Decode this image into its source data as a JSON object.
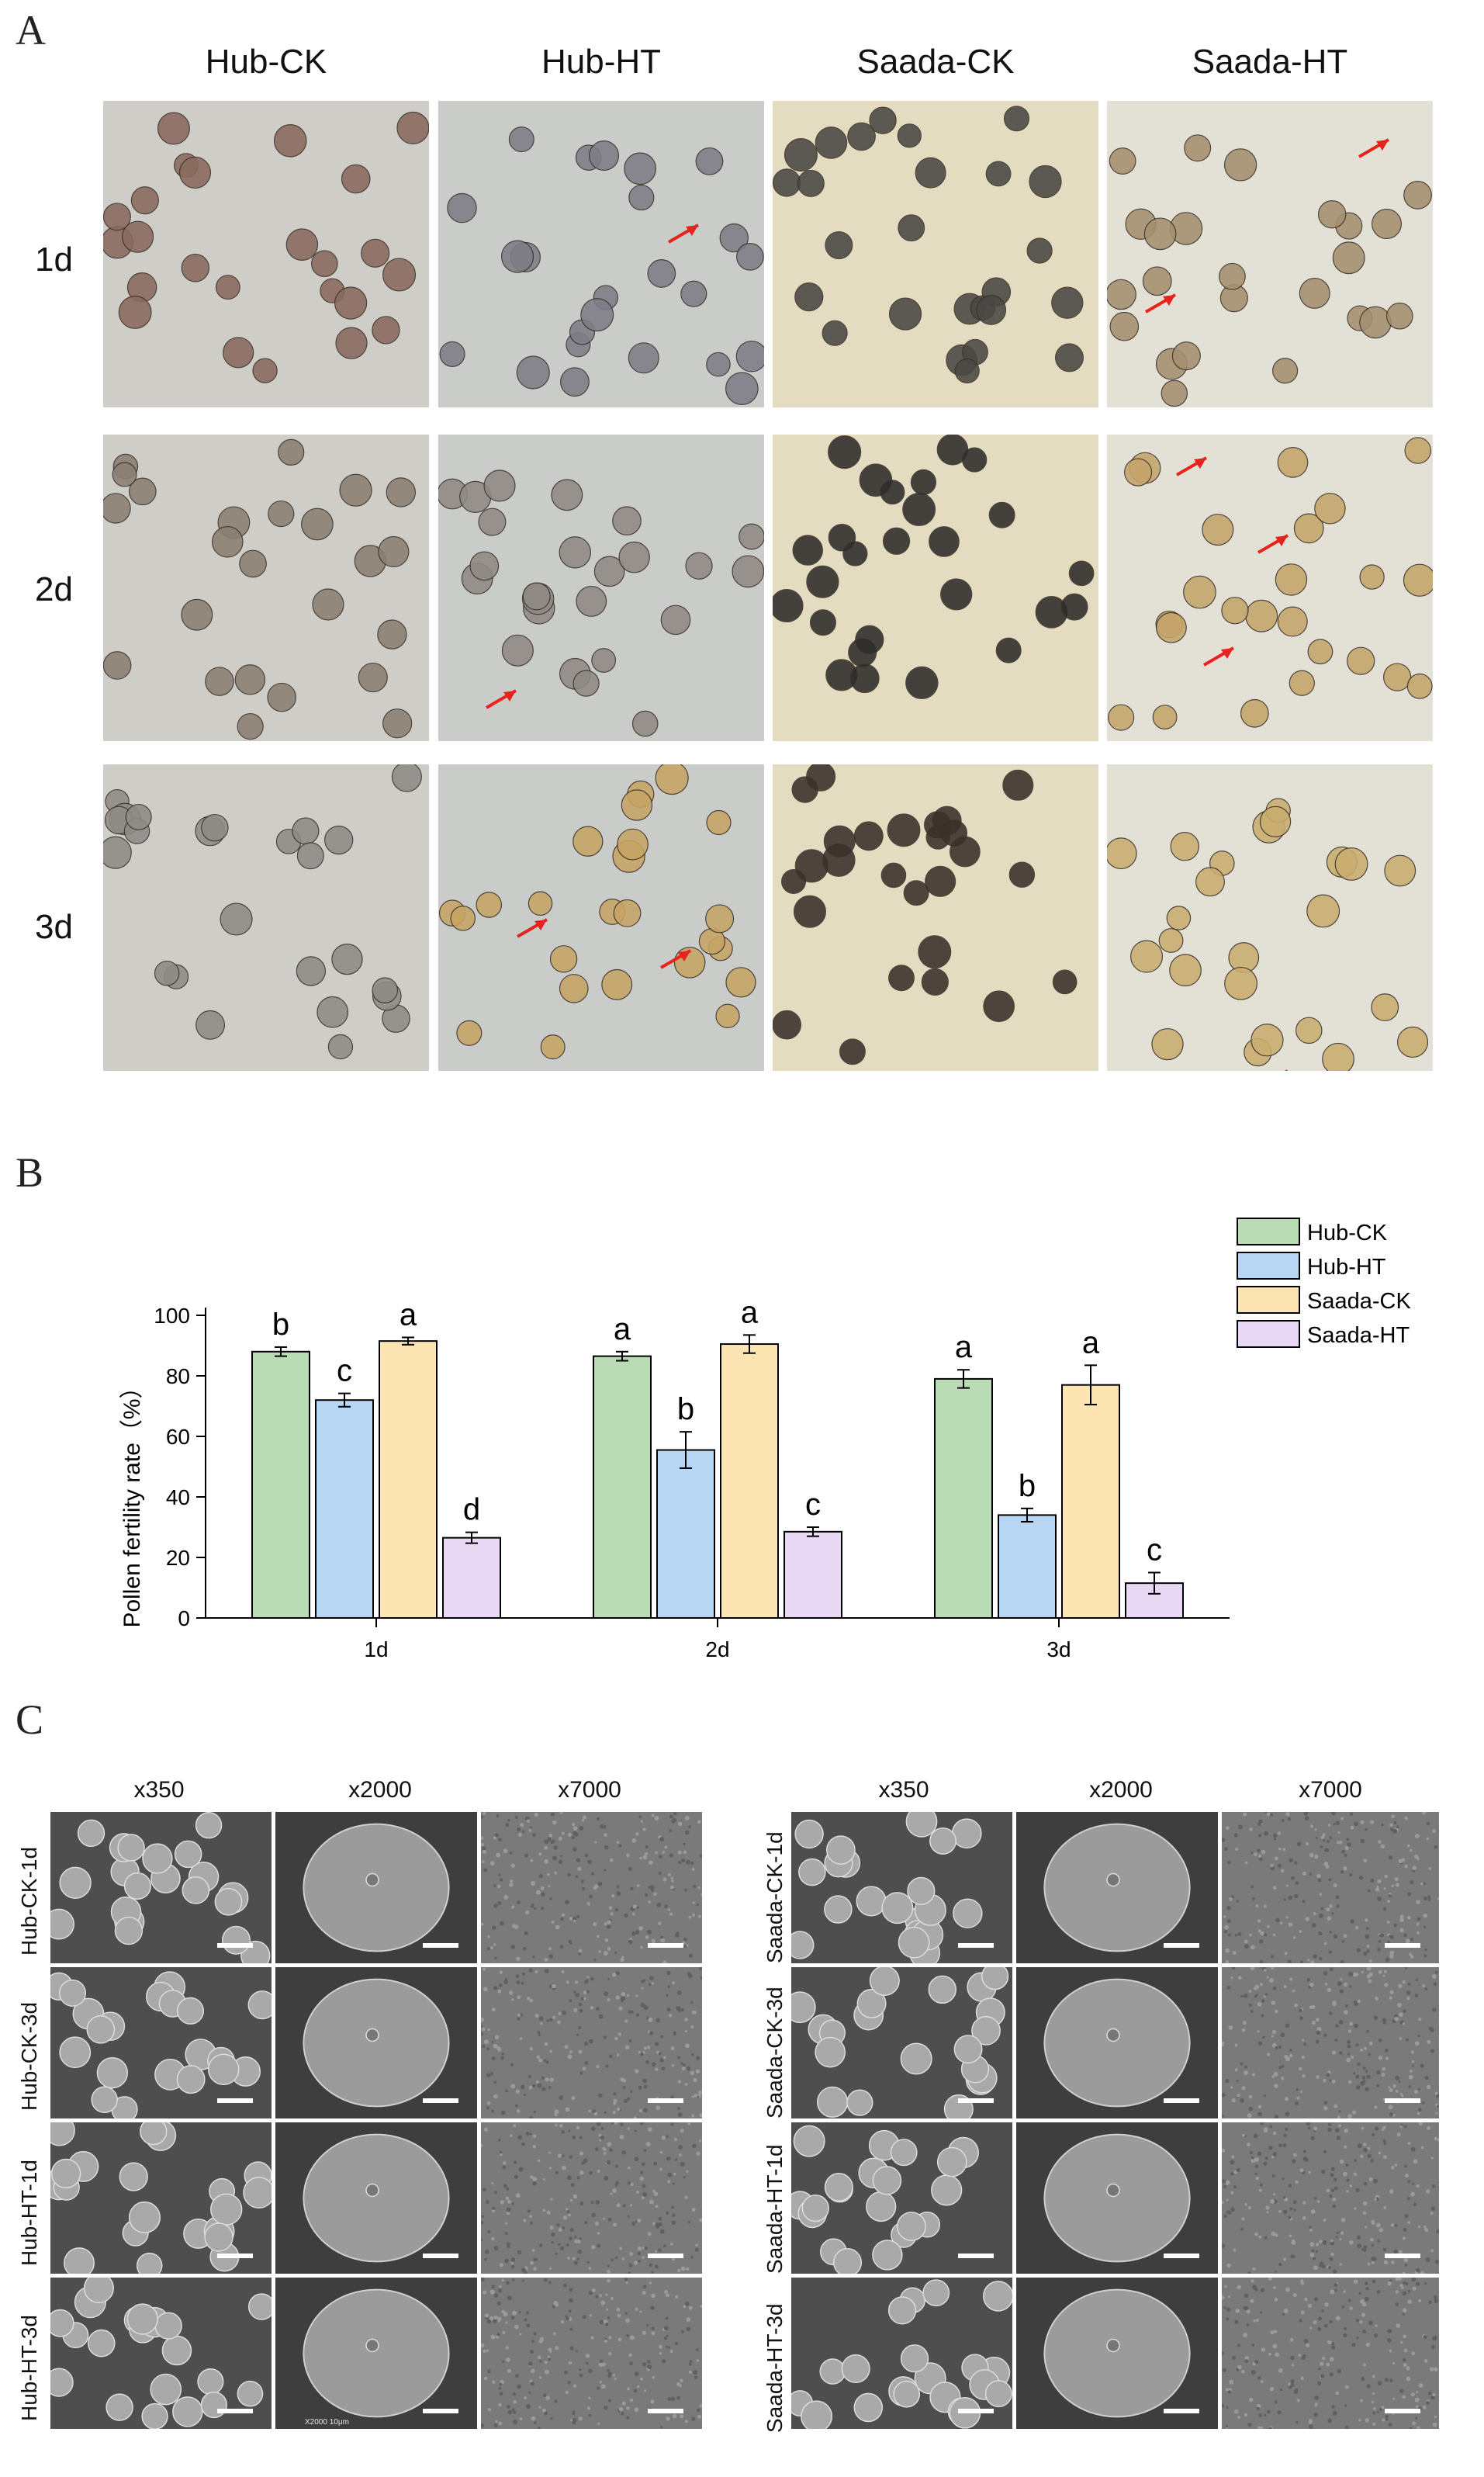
{
  "panels": {
    "a": "A",
    "b": "B",
    "c": "C"
  },
  "panel_a": {
    "columns": [
      "Hub-CK",
      "Hub-HT",
      "Saada-CK",
      "Saada-HT"
    ],
    "rows": [
      "1d",
      "2d",
      "3d"
    ]
  },
  "chart_data": {
    "type": "bar",
    "categories": [
      "1d",
      "2d",
      "3d"
    ],
    "series": [
      {
        "name": "Hub-CK",
        "values": [
          88,
          86.5,
          79
        ],
        "errors": [
          1.5,
          1.5,
          3
        ],
        "letters": [
          "b",
          "a",
          "a"
        ],
        "color": "#b9dcb4"
      },
      {
        "name": "Hub-HT",
        "values": [
          72,
          55.5,
          34
        ],
        "errors": [
          2.2,
          6,
          2.2
        ],
        "letters": [
          "c",
          "b",
          "b"
        ],
        "color": "#b7d6f4"
      },
      {
        "name": "Saada-CK",
        "values": [
          91.5,
          90.5,
          77
        ],
        "errors": [
          1.2,
          3,
          6.5
        ],
        "letters": [
          "a",
          "a",
          "a"
        ],
        "color": "#fde5b3"
      },
      {
        "name": "Saada-HT",
        "values": [
          26.5,
          28.5,
          11.5
        ],
        "errors": [
          1.8,
          1.5,
          3.5
        ],
        "letters": [
          "d",
          "c",
          "c"
        ],
        "color": "#e8d8f4"
      }
    ],
    "ylabel": "Pollen fertility rate（%）",
    "xlabel": "",
    "ylim": [
      0,
      100
    ],
    "yticks": [
      0,
      20,
      40,
      60,
      80,
      100
    ],
    "legend_position": "top-right"
  },
  "panel_c": {
    "columns": [
      "x350",
      "x2000",
      "x7000"
    ],
    "left_rows": [
      "Hub-CK-1d",
      "Hub-CK-3d",
      "Hub-HT-1d",
      "Hub-HT-3d"
    ],
    "right_rows": [
      "Saada-CK-1d",
      "Saada-CK-3d",
      "Saada-HT-1d",
      "Saada-HT-3d"
    ],
    "sem_imprint": "X2000    10μm"
  },
  "colors": {
    "arrow": "#e8221c",
    "hub_ck_bg": "#cfcdc8",
    "hub_ht_bg": "#c9ccc9",
    "saada_ck_bg": "#e4dcc0",
    "saada_ht_bg": "#e3e1d6"
  }
}
